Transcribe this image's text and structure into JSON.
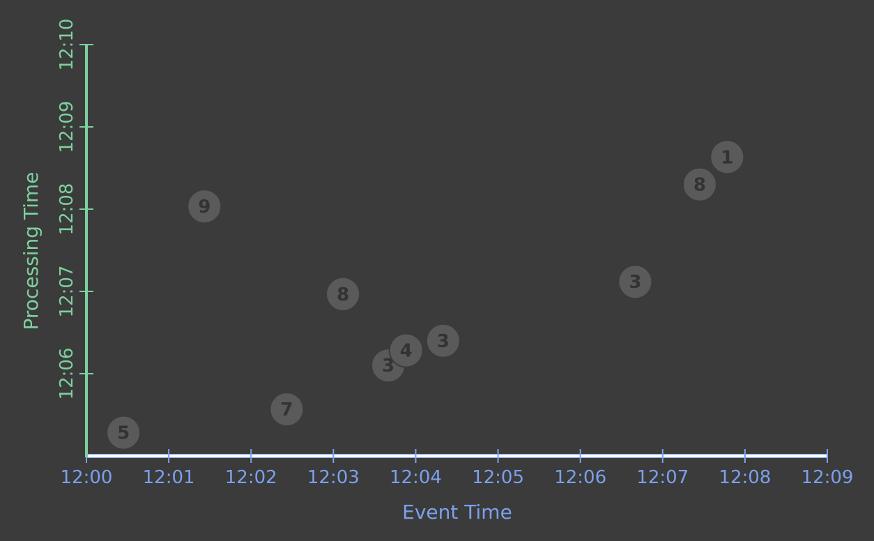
{
  "chart_data": {
    "type": "scatter",
    "xlabel": "Event Time",
    "ylabel": "Processing Time",
    "x_ticks": [
      "12:00",
      "12:01",
      "12:02",
      "12:03",
      "12:04",
      "12:05",
      "12:06",
      "12:07",
      "12:08",
      "12:09"
    ],
    "y_ticks": [
      "12:06",
      "12:07",
      "12:08",
      "12:09",
      "12:10"
    ],
    "xlim": [
      "12:00",
      "12:09"
    ],
    "ylim": [
      "12:05",
      "12:10"
    ],
    "grid": false,
    "points": [
      {
        "x": "12:00:27",
        "y": "12:05:17",
        "label": "5"
      },
      {
        "x": "12:01:26",
        "y": "12:08:02",
        "label": "9"
      },
      {
        "x": "12:02:26",
        "y": "12:05:34",
        "label": "7"
      },
      {
        "x": "12:03:07",
        "y": "12:06:58",
        "label": "8"
      },
      {
        "x": "12:03:40",
        "y": "12:06:06",
        "label": "3"
      },
      {
        "x": "12:03:53",
        "y": "12:06:17",
        "label": "4"
      },
      {
        "x": "12:04:20",
        "y": "12:06:24",
        "label": "3"
      },
      {
        "x": "12:06:40",
        "y": "12:07:07",
        "label": "3"
      },
      {
        "x": "12:07:27",
        "y": "12:08:18",
        "label": "8"
      },
      {
        "x": "12:07:47",
        "y": "12:08:38",
        "label": "1"
      }
    ],
    "colors": {
      "background": "#3b3b3b",
      "x_axis": "#7ba0ec",
      "y_axis": "#7dd19e",
      "point_fill": "#5a5a5a",
      "point_text": "#333333"
    }
  }
}
